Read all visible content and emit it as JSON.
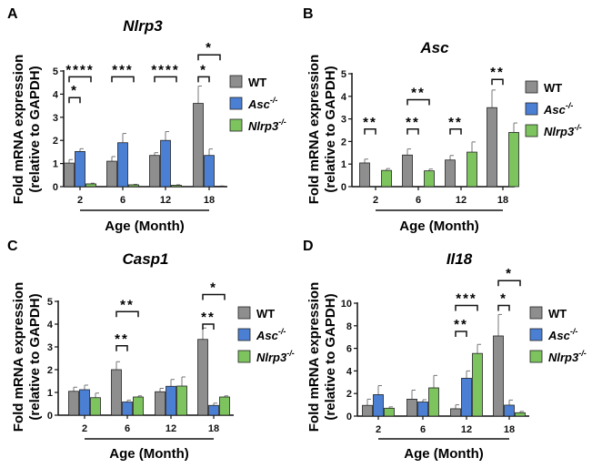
{
  "colors": {
    "WT": "#8e8e8e",
    "Asc": "#4a7fd4",
    "Nlrp3": "#7dc35e"
  },
  "chart_data": [
    {
      "type": "bar",
      "panel": "A",
      "title": "Nlrp3",
      "ylabel": [
        "Fold mRNA expression",
        "(relative to GAPDH)"
      ],
      "xlabel": "Age (Month)",
      "categories": [
        "2",
        "6",
        "12",
        "18"
      ],
      "ylim": [
        0,
        5
      ],
      "yticks": [
        "0",
        "1",
        "2",
        "3",
        "4",
        "5"
      ],
      "legend": [
        {
          "name": "WT",
          "sup": ""
        },
        {
          "name": "Asc",
          "sup": "-/-"
        },
        {
          "name": "Nlrp3",
          "sup": "-/-"
        }
      ],
      "legend_position": "right",
      "series": [
        {
          "name": "WT",
          "values": [
            1.02,
            1.1,
            1.35,
            3.6
          ],
          "errors": [
            0.15,
            0.2,
            0.12,
            0.75
          ]
        },
        {
          "name": "Asc-/-",
          "values": [
            1.52,
            1.9,
            2.0,
            1.35
          ],
          "errors": [
            0.12,
            0.4,
            0.38,
            0.28
          ]
        },
        {
          "name": "Nlrp3-/-",
          "values": [
            0.12,
            0.08,
            0.06,
            0.02
          ],
          "errors": [
            0.03,
            0.02,
            0.02,
            0.01
          ]
        }
      ],
      "significance": [
        {
          "category": "2",
          "from": 0,
          "to": 2,
          "label": "****"
        },
        {
          "category": "2",
          "from": 0,
          "to": 1,
          "label": "*"
        },
        {
          "category": "6",
          "from": 0,
          "to": 2,
          "label": "***"
        },
        {
          "category": "12",
          "from": 0,
          "to": 2,
          "label": "****"
        },
        {
          "category": "18",
          "from": 0,
          "to": 1,
          "label": "*"
        },
        {
          "category": "18",
          "from": 0,
          "to": 2,
          "label": "*"
        }
      ]
    },
    {
      "type": "bar",
      "panel": "B",
      "title": "Asc",
      "ylabel": [
        "Fold mRNA expression",
        "(relative to GAPDH)"
      ],
      "xlabel": "Age (Month)",
      "categories": [
        "2",
        "6",
        "12",
        "18"
      ],
      "ylim": [
        0,
        5
      ],
      "yticks": [
        "0",
        "1",
        "2",
        "3",
        "4",
        "5"
      ],
      "legend": [
        {
          "name": "WT",
          "sup": ""
        },
        {
          "name": "Asc",
          "sup": "-/-"
        },
        {
          "name": "Nlrp3",
          "sup": "-/-"
        }
      ],
      "legend_position": "right",
      "series": [
        {
          "name": "WT",
          "values": [
            1.05,
            1.4,
            1.18,
            3.5
          ],
          "errors": [
            0.17,
            0.27,
            0.2,
            0.78
          ]
        },
        {
          "name": "Asc-/-",
          "values": [
            0,
            0,
            0,
            0
          ],
          "errors": [
            0,
            0,
            0,
            0
          ]
        },
        {
          "name": "Nlrp3-/-",
          "values": [
            0.72,
            0.7,
            1.53,
            2.4
          ],
          "errors": [
            0.08,
            0.08,
            0.45,
            0.42
          ]
        }
      ],
      "significance": [
        {
          "category": "2",
          "from": 0,
          "to": 1,
          "label": "**"
        },
        {
          "category": "6",
          "from": 0,
          "to": 1,
          "label": "**"
        },
        {
          "category": "6",
          "from": 0,
          "to": 2,
          "label": "**"
        },
        {
          "category": "12",
          "from": 0,
          "to": 1,
          "label": "**"
        },
        {
          "category": "18",
          "from": 0,
          "to": 1,
          "label": "**"
        }
      ]
    },
    {
      "type": "bar",
      "panel": "C",
      "title": "Casp1",
      "ylabel": [
        "Fold mRNA expression",
        "(relative to GAPDH)"
      ],
      "xlabel": "Age (Month)",
      "categories": [
        "2",
        "6",
        "12",
        "18"
      ],
      "ylim": [
        0,
        5
      ],
      "yticks": [
        "0",
        "1",
        "2",
        "3",
        "4",
        "5"
      ],
      "legend": [
        {
          "name": "WT",
          "sup": ""
        },
        {
          "name": "Asc",
          "sup": "-/-"
        },
        {
          "name": "Nlrp3",
          "sup": "-/-"
        }
      ],
      "legend_position": "right",
      "series": [
        {
          "name": "WT",
          "values": [
            1.05,
            2.0,
            1.03,
            3.33
          ],
          "errors": [
            0.18,
            0.35,
            0.15,
            0.5
          ]
        },
        {
          "name": "Asc-/-",
          "values": [
            1.12,
            0.58,
            1.27,
            0.43
          ],
          "errors": [
            0.2,
            0.08,
            0.3,
            0.1
          ]
        },
        {
          "name": "Nlrp3-/-",
          "values": [
            0.77,
            0.8,
            1.28,
            0.8
          ],
          "errors": [
            0.2,
            0.05,
            0.4,
            0.05
          ]
        }
      ],
      "significance": [
        {
          "category": "6",
          "from": 0,
          "to": 1,
          "label": "**"
        },
        {
          "category": "6",
          "from": 0,
          "to": 2,
          "label": "**"
        },
        {
          "category": "18",
          "from": 0,
          "to": 1,
          "label": "**"
        },
        {
          "category": "18",
          "from": 0,
          "to": 2,
          "label": "*"
        }
      ]
    },
    {
      "type": "bar",
      "panel": "D",
      "title": "Il18",
      "ylabel": [
        "Fold mRNA expression",
        "(relative to GAPDH)"
      ],
      "xlabel": "Age (Month)",
      "categories": [
        "2",
        "6",
        "12",
        "18"
      ],
      "ylim": [
        0,
        10
      ],
      "yticks": [
        "0",
        "2",
        "4",
        "6",
        "8",
        "10"
      ],
      "legend": [
        {
          "name": "WT",
          "sup": ""
        },
        {
          "name": "Asc",
          "sup": "-/-"
        },
        {
          "name": "Nlrp3",
          "sup": "-/-"
        }
      ],
      "legend_position": "right",
      "series": [
        {
          "name": "WT",
          "values": [
            0.95,
            1.5,
            0.65,
            7.1
          ],
          "errors": [
            0.55,
            0.8,
            0.35,
            1.9
          ]
        },
        {
          "name": "Asc-/-",
          "values": [
            1.9,
            1.25,
            3.35,
            0.97
          ],
          "errors": [
            0.8,
            0.2,
            0.65,
            0.45
          ]
        },
        {
          "name": "Nlrp3-/-",
          "values": [
            0.7,
            2.5,
            5.55,
            0.3
          ],
          "errors": [
            0.12,
            1.1,
            0.8,
            0.12
          ]
        }
      ],
      "significance": [
        {
          "category": "12",
          "from": 0,
          "to": 1,
          "label": "**"
        },
        {
          "category": "12",
          "from": 0,
          "to": 2,
          "label": "***"
        },
        {
          "category": "18",
          "from": 0,
          "to": 1,
          "label": "*"
        },
        {
          "category": "18",
          "from": 0,
          "to": 2,
          "label": "*"
        }
      ]
    }
  ]
}
